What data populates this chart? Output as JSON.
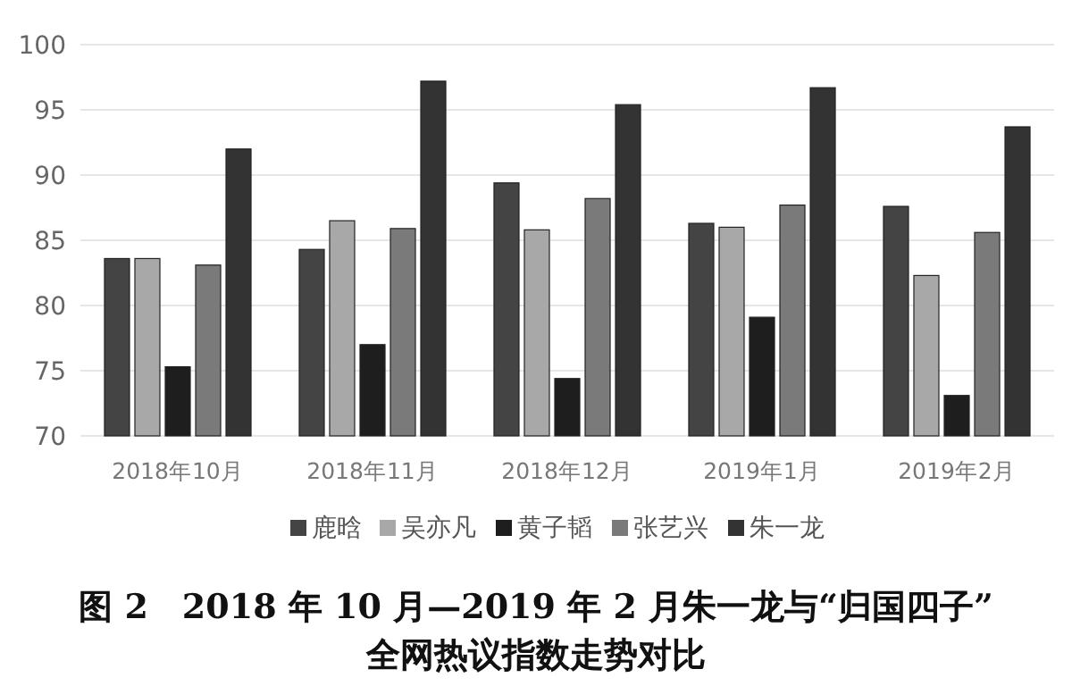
{
  "chart_data": {
    "type": "bar",
    "title": "图 2　2018 年 10 月—2019 年 2 月朱一龙与“归国四子”全网热议指数走势对比",
    "categories": [
      "2018年10月",
      "2018年11月",
      "2018年12月",
      "2019年1月",
      "2019年2月"
    ],
    "series": [
      {
        "name": "鹿晗",
        "color": "#444444",
        "values": [
          83.6,
          84.3,
          89.4,
          86.3,
          87.6
        ]
      },
      {
        "name": "吴亦凡",
        "color": "#a8a8a8",
        "values": [
          83.6,
          86.5,
          85.8,
          86.0,
          82.3
        ]
      },
      {
        "name": "黄子韬",
        "color": "#1e1e1e",
        "values": [
          75.3,
          77.0,
          74.4,
          79.1,
          73.1
        ]
      },
      {
        "name": "张艺兴",
        "color": "#7a7a7a",
        "values": [
          83.1,
          85.9,
          88.2,
          87.7,
          85.6
        ]
      },
      {
        "name": "朱一龙",
        "color": "#333333",
        "values": [
          92.0,
          97.2,
          95.4,
          96.7,
          93.7
        ]
      }
    ],
    "ylim": [
      70,
      100
    ],
    "yticks": [
      70,
      75,
      80,
      85,
      90,
      95,
      100
    ],
    "grid": "y",
    "legend": "bottom"
  }
}
